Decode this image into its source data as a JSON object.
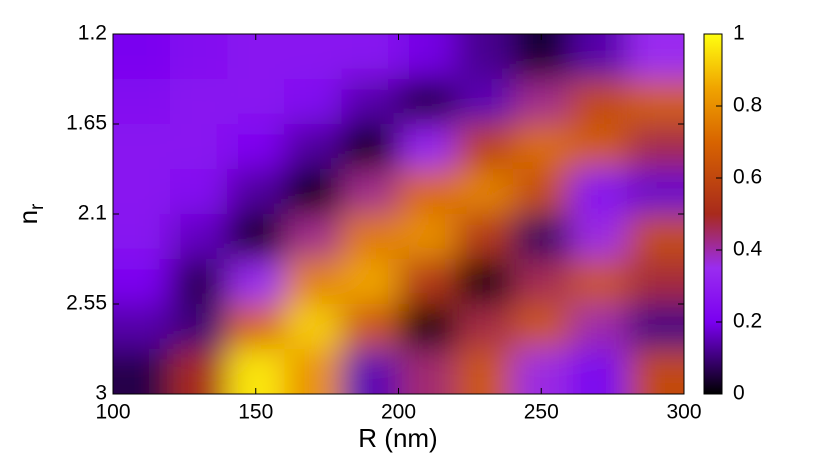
{
  "chart_data": {
    "type": "heatmap",
    "xlabel": "R (nm)",
    "ylabel": "n",
    "ylabel_subscript": "r",
    "x": [
      110,
      130,
      150,
      170,
      190,
      210,
      230,
      250,
      270,
      290
    ],
    "y": [
      1.3125,
      1.5375,
      1.7625,
      1.9875,
      2.2125,
      2.4375,
      2.6625,
      2.8875
    ],
    "z": [
      [
        0.2,
        0.24,
        0.27,
        0.27,
        0.26,
        0.19,
        0.12,
        0.04,
        0.14,
        0.35
      ],
      [
        0.24,
        0.27,
        0.27,
        0.23,
        0.14,
        0.05,
        0.15,
        0.42,
        0.61,
        0.68
      ],
      [
        0.27,
        0.27,
        0.22,
        0.13,
        0.01,
        0.32,
        0.58,
        0.72,
        0.67,
        0.47
      ],
      [
        0.27,
        0.24,
        0.13,
        0.0,
        0.42,
        0.71,
        0.77,
        0.62,
        0.25,
        0.17
      ],
      [
        0.26,
        0.16,
        0.02,
        0.42,
        0.75,
        0.8,
        0.55,
        0.08,
        0.36,
        0.62
      ],
      [
        0.21,
        0.07,
        0.34,
        0.77,
        0.85,
        0.55,
        0.01,
        0.46,
        0.65,
        0.48
      ],
      [
        0.14,
        0.1,
        0.7,
        0.92,
        0.65,
        0.0,
        0.47,
        0.65,
        0.4,
        0.11
      ],
      [
        0.06,
        0.5,
        0.96,
        0.81,
        0.15,
        0.44,
        0.65,
        0.36,
        0.2,
        0.61
      ]
    ],
    "xlim": [
      100,
      300
    ],
    "xticks": [
      100,
      150,
      200,
      250,
      300
    ],
    "ylim": [
      1.2,
      3
    ],
    "yticks": [
      1.2,
      1.65,
      2.1,
      2.55,
      3
    ],
    "y_inverted": true,
    "zlim": [
      0,
      1
    ],
    "colorbar_ticks": [
      0,
      0.2,
      0.4,
      0.6,
      0.8,
      1
    ],
    "colorscale": [
      [
        0,
        "#000000"
      ],
      [
        0.2,
        "#7a00f0"
      ],
      [
        0.35,
        "#9a2cf0"
      ],
      [
        0.5,
        "#a82a1c"
      ],
      [
        0.7,
        "#d86400"
      ],
      [
        0.85,
        "#f0a400"
      ],
      [
        1,
        "#ffff10"
      ]
    ]
  }
}
